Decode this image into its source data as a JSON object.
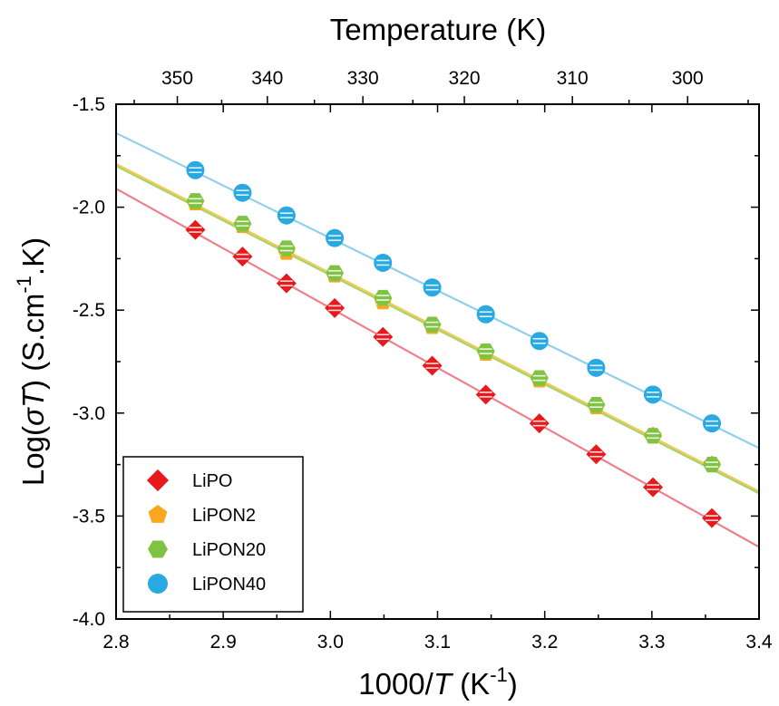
{
  "chart_data": {
    "type": "scatter",
    "title": "",
    "top_axis": {
      "label": "Temperature (K)",
      "ticks": [
        350,
        340,
        330,
        320,
        310,
        300
      ]
    },
    "xlabel": {
      "prefix": "1000/",
      "italic": "T",
      "open": " (K",
      "sup": "-1",
      "close": ")"
    },
    "ylabel": {
      "prefix": "Log(",
      "italic": "σT",
      "mid": ") (S.cm",
      "sup": "-1",
      "suffix": ".K)"
    },
    "xlim": [
      2.8,
      3.4
    ],
    "ylim": [
      -4.0,
      -1.5
    ],
    "x_ticks": [
      2.8,
      2.9,
      3.0,
      3.1,
      3.2,
      3.3,
      3.4
    ],
    "x_tick_labels": [
      "2.8",
      "2.9",
      "3.0",
      "3.1",
      "3.2",
      "3.3",
      "3.4"
    ],
    "y_ticks": [
      -1.5,
      -2.0,
      -2.5,
      -3.0,
      -3.5,
      -4.0
    ],
    "y_tick_labels": [
      "-1.5",
      "-2.0",
      "-2.5",
      "-3.0",
      "-3.5",
      "-4.0"
    ],
    "grid": false,
    "legend_position": "bottom-left",
    "x": [
      2.874,
      2.918,
      2.959,
      3.004,
      3.049,
      3.095,
      3.145,
      3.195,
      3.248,
      3.301,
      3.356
    ],
    "series": [
      {
        "name": "LiPO",
        "marker": "diamond",
        "color": "#e8191c",
        "line_color": "#ef7f8c",
        "values": [
          -2.11,
          -2.24,
          -2.37,
          -2.49,
          -2.63,
          -2.77,
          -2.91,
          -3.05,
          -3.2,
          -3.36,
          -3.51
        ],
        "fit": [
          -1.91,
          -3.65
        ]
      },
      {
        "name": "LiPON2",
        "marker": "pentagon",
        "color": "#f9a81d",
        "line_color": "#f7c957",
        "values": [
          -1.98,
          -2.09,
          -2.22,
          -2.33,
          -2.46,
          -2.58,
          -2.71,
          -2.84,
          -2.97,
          -3.11,
          -3.25
        ],
        "fit": [
          -1.79,
          -3.38
        ]
      },
      {
        "name": "LiPON20",
        "marker": "hexagon",
        "color": "#80c342",
        "line_color": "#a9d46b",
        "values": [
          -1.97,
          -2.08,
          -2.2,
          -2.32,
          -2.44,
          -2.57,
          -2.7,
          -2.83,
          -2.96,
          -3.11,
          -3.25
        ],
        "fit": [
          -1.8,
          -3.39
        ]
      },
      {
        "name": "LiPON40",
        "marker": "circle",
        "color": "#29a9e1",
        "line_color": "#8fd1ea",
        "values": [
          -1.82,
          -1.93,
          -2.04,
          -2.15,
          -2.27,
          -2.39,
          -2.52,
          -2.65,
          -2.78,
          -2.91,
          -3.05
        ],
        "fit": [
          -1.64,
          -3.17
        ]
      }
    ]
  }
}
